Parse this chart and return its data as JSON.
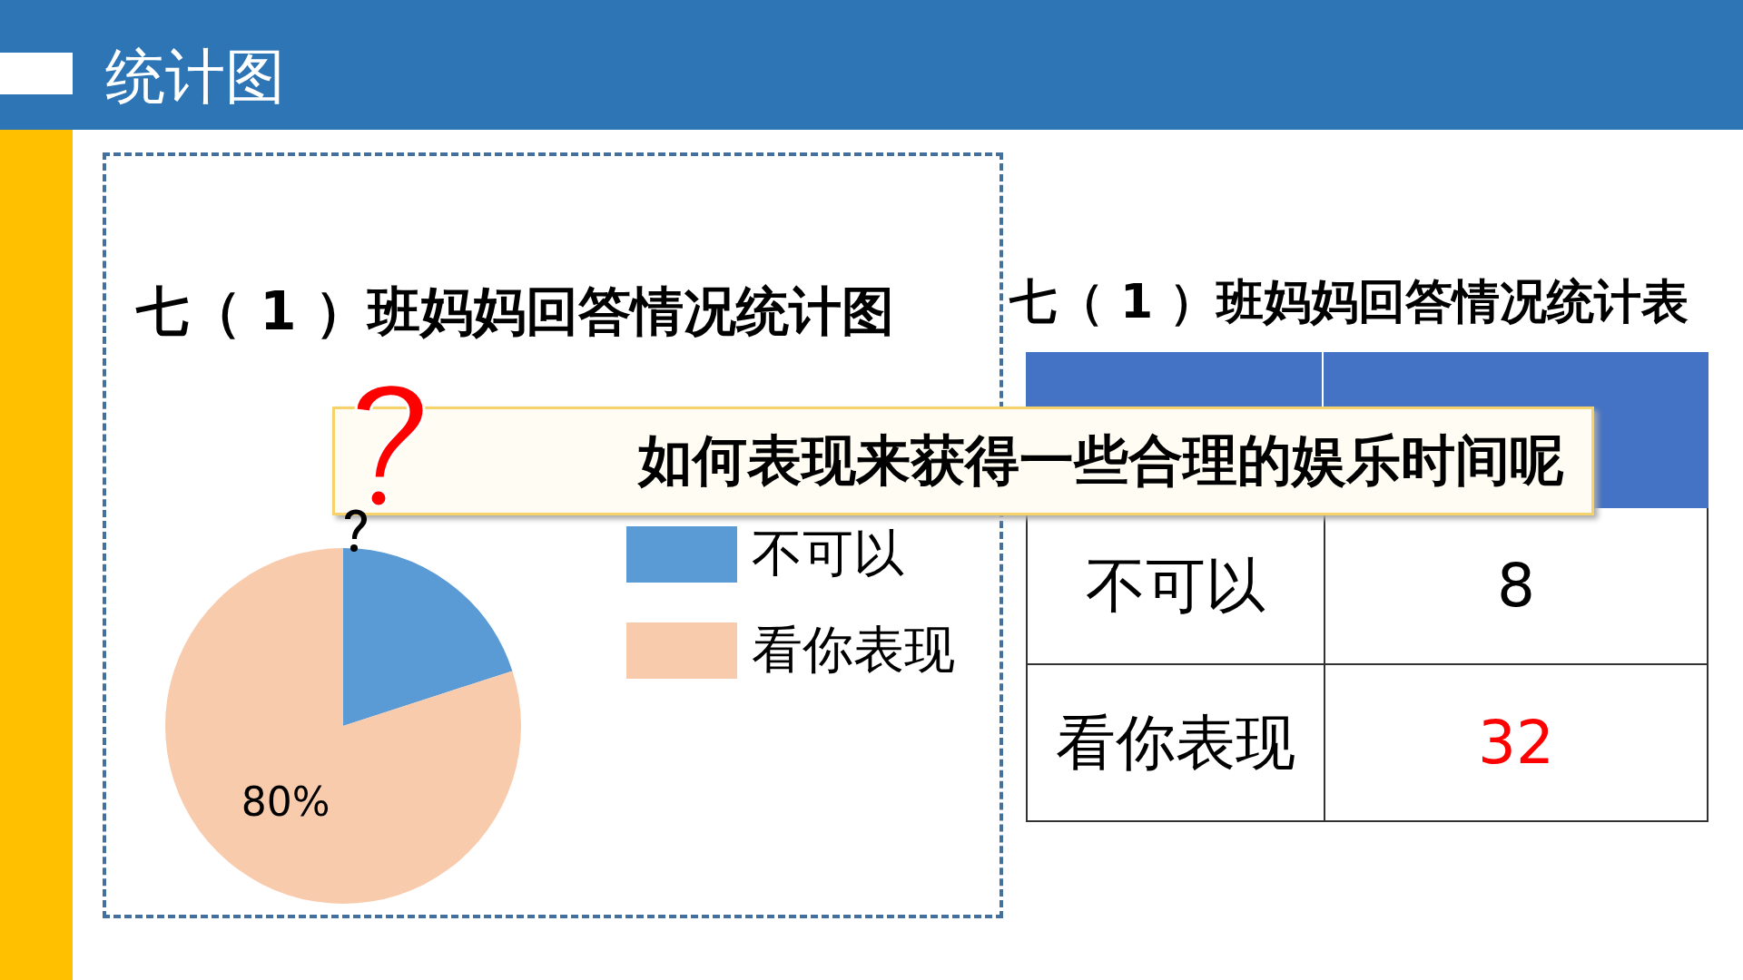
{
  "chart_data": [
    {
      "type": "pie",
      "title": "七（ 1 ）班妈妈回答情况统计图",
      "categories": [
        "不可以",
        "看你表现"
      ],
      "values": [
        20,
        80
      ],
      "colors": [
        "#5b9bd5",
        "#f8cbad"
      ],
      "value_labels": [
        null,
        "80%"
      ],
      "legend": "right",
      "annotations": [
        "统计图",
        "如何表现来获得一些合理的娱乐时间呢"
      ]
    },
    {
      "type": "other",
      "title": "七（ 1 ）班妈妈回答情况统计表",
      "categories": [
        "不可以",
        "看你表现"
      ],
      "values": [
        8,
        32
      ],
      "colors": [
        "#000000",
        "#ff0000"
      ],
      "data_labels": true
    }
  ]
}
